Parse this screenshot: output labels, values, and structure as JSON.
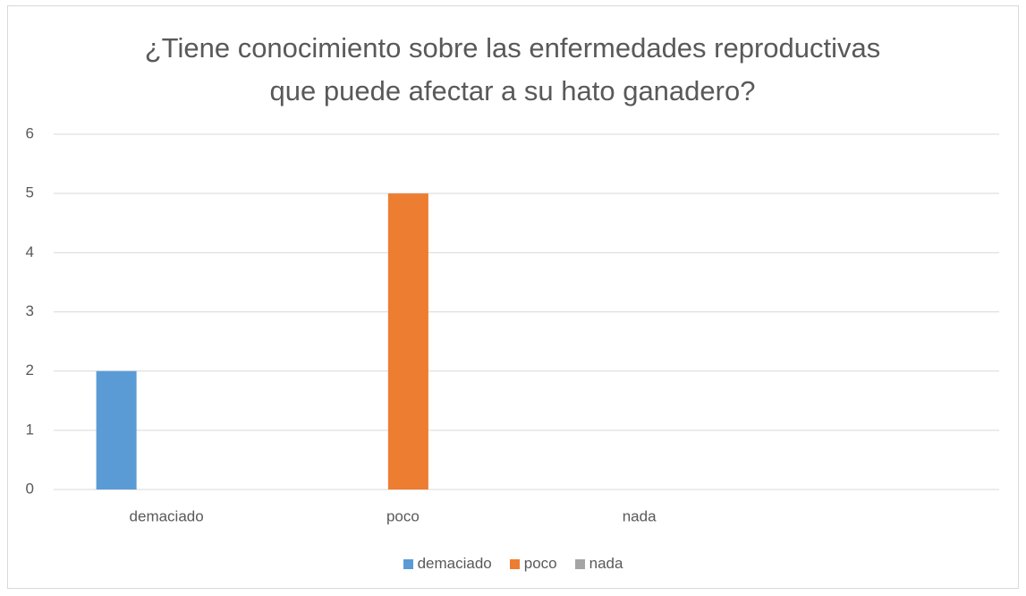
{
  "chart_data": {
    "type": "bar",
    "title": "¿Tiene conocimiento sobre las enfermedades reproductivas que puede afectar a su hato ganadero?",
    "categories": [
      "demaciado",
      "poco",
      "nada",
      null
    ],
    "series": [
      {
        "name": "demaciado",
        "color": "#5b9bd5",
        "values": [
          2,
          0,
          0,
          null
        ]
      },
      {
        "name": "poco",
        "color": "#ed7d31",
        "values": [
          0,
          5,
          0,
          null
        ]
      },
      {
        "name": "nada",
        "color": "#a5a5a5",
        "values": [
          0,
          0,
          0,
          null
        ]
      }
    ],
    "ylim": [
      0,
      6
    ],
    "yticks": [
      0,
      1,
      2,
      3,
      4,
      5,
      6
    ],
    "grid": true,
    "legend": "bottom"
  }
}
